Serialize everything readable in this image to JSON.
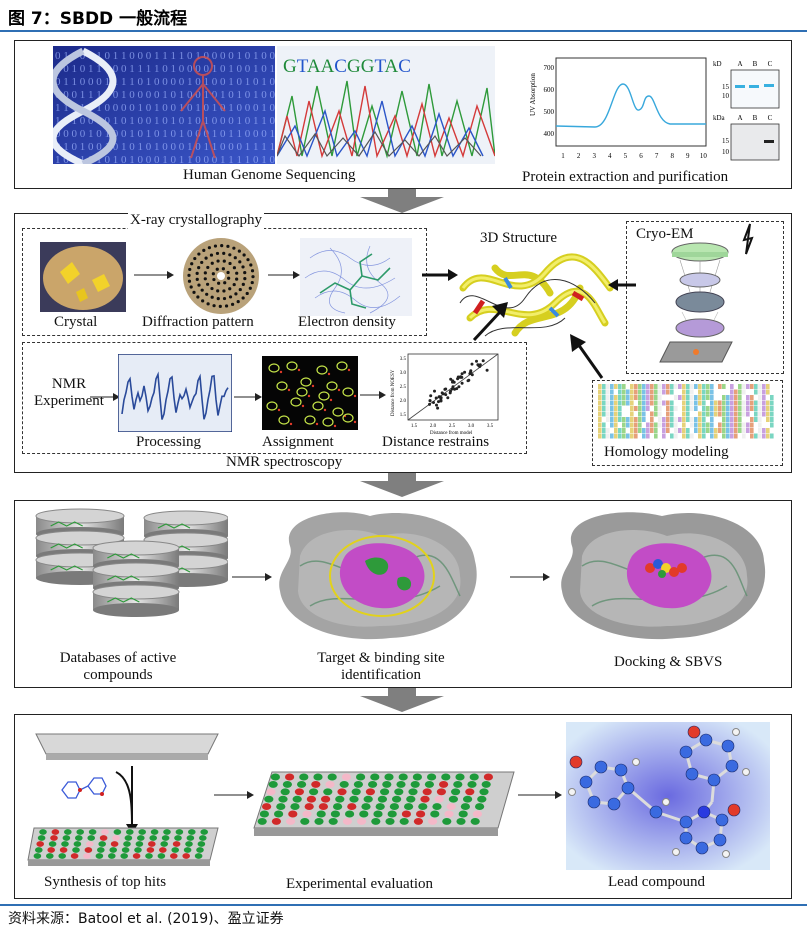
{
  "header": {
    "figure_title": "图 7：SBDD 一般流程"
  },
  "stage1": {
    "dna_sequence_letters": [
      "G",
      "T",
      "A",
      "A",
      "C",
      "G",
      "G",
      "T",
      "A",
      "C"
    ],
    "dna_sequence_colors": [
      "#1f8a3a",
      "#2255cc",
      "#1f8a3a",
      "#1f8a3a",
      "#2255cc",
      "#1f8a3a",
      "#1f8a3a",
      "#2255cc",
      "#1f8a3a",
      "#2255cc"
    ],
    "binary_text": "01000101100011110100001010010101",
    "genome_label": "Human Genome Sequencing",
    "purification_label": "Protein extraction and purification",
    "chromatogram": {
      "y_label": "UV Absorption",
      "y_ticks": [
        "700",
        "600",
        "500",
        "400"
      ],
      "x_ticks": [
        "1",
        "2",
        "3",
        "4",
        "5",
        "6",
        "7",
        "8",
        "9",
        "10"
      ]
    },
    "gel_top": {
      "unit": "kD",
      "lanes": [
        "A",
        "B",
        "C"
      ],
      "markers": [
        "15",
        "10"
      ]
    },
    "gel_bottom": {
      "unit": "kDa",
      "lanes": [
        "A",
        "B",
        "C"
      ],
      "markers": [
        "15",
        "10"
      ]
    }
  },
  "stage2": {
    "xray_title": "X-ray crystallography",
    "crystal_label": "Crystal",
    "diffraction_label": "Diffraction pattern",
    "density_label": "Electron density",
    "structure_label": "3D Structure",
    "cryo_label": "Cryo-EM",
    "nmr_exp_label": "NMR\nExperiment",
    "processing_label": "Processing",
    "assignment_label": "Assignment",
    "distance_label": "Distance restrains",
    "nmr_title": "NMR spectroscopy",
    "homology_label": "Homology modeling",
    "scatter": {
      "x_label": "Distance from model",
      "y_label": "Distance from NOESY",
      "x_ticks": [
        "1.5",
        "2.0",
        "2.5",
        "3.0",
        "3.5"
      ],
      "y_ticks": [
        "3.5",
        "3.0",
        "2.5",
        "2.0",
        "1.5"
      ]
    }
  },
  "stage3": {
    "databases_label": "Databases of active compounds",
    "target_label": "Target & binding site identification",
    "docking_label": "Docking & SBVS"
  },
  "stage4": {
    "synthesis_label": "Synthesis of top hits",
    "evaluation_label": "Experimental evaluation",
    "lead_label": "Lead compound"
  },
  "footer": {
    "source": "资料来源：Batool et al. (2019)、盈立证券"
  },
  "colors": {
    "rule": "#2f6fb4",
    "arrow": "#7f7f7f",
    "helix": "#e8e23a",
    "magenta": "#c24cc6",
    "well_green": "#1e9a3a",
    "well_red": "#d12a2a"
  }
}
